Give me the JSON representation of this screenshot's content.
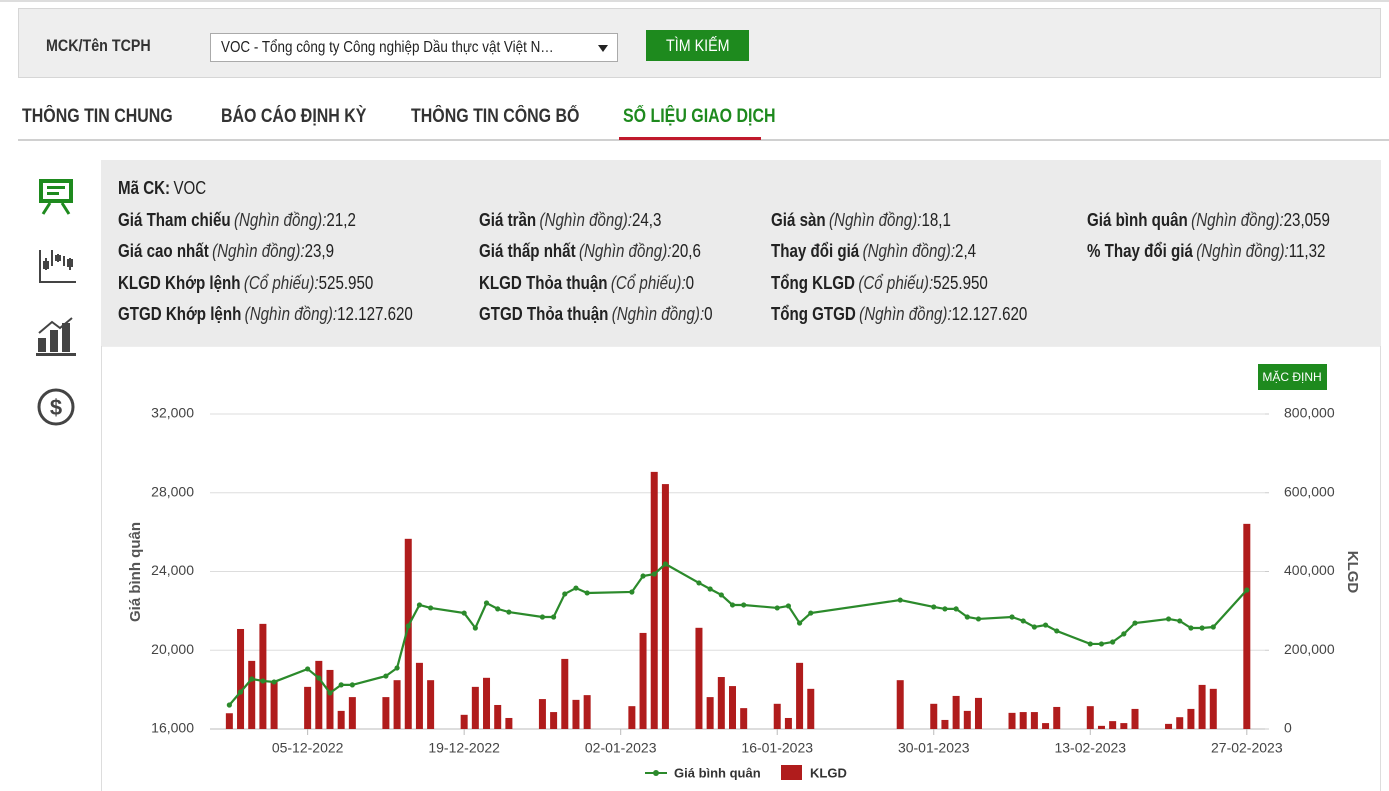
{
  "search": {
    "label": "MCK/Tên TCPH",
    "select": "VOC - Tổng công ty Công nghiệp Dầu thực vật Việt N…",
    "button": "TÌM KIẾM"
  },
  "tabs": [
    "THÔNG TIN CHUNG",
    "BÁO CÁO ĐỊNH KỲ",
    "THÔNG TIN CÔNG BỐ",
    "SỐ LIỆU GIAO DỊCH"
  ],
  "info": {
    "rows": [
      [
        {
          "label": "Mã CK:",
          "value": "VOC"
        }
      ],
      [
        {
          "label": "Giá Tham chiếu",
          "unit": "(Nghìn đồng):",
          "value": "21,2"
        },
        {
          "label": "Giá trần",
          "unit": "(Nghìn đồng):",
          "value": "24,3"
        },
        {
          "label": "Giá sàn",
          "unit": "(Nghìn đồng):",
          "value": "18,1"
        },
        {
          "label": "Giá bình quân",
          "unit": "(Nghìn đồng):",
          "value": "23,059"
        }
      ],
      [
        {
          "label": "Giá cao nhất",
          "unit": "(Nghìn đồng):",
          "value": "23,9"
        },
        {
          "label": "Giá thấp nhất",
          "unit": "(Nghìn đồng):",
          "value": "20,6"
        },
        {
          "label": "Thay đổi giá",
          "unit": "(Nghìn đồng):",
          "value": "2,4"
        },
        {
          "label": "% Thay đổi giá",
          "unit": "(Nghìn đồng):",
          "value": "11,32"
        }
      ],
      [
        {
          "label": "KLGD Khớp lệnh",
          "unit": "(Cổ phiếu):",
          "value": "525.950"
        },
        {
          "label": "KLGD Thỏa thuận",
          "unit": "(Cổ phiếu):",
          "value": "0"
        },
        {
          "label": "Tổng KLGD",
          "unit": "(Cổ phiếu):",
          "value": "525.950"
        }
      ],
      [
        {
          "label": "GTGD Khớp lệnh",
          "unit": "(Nghìn đồng):",
          "value": "12.127.620"
        },
        {
          "label": "GTGD Thỏa thuận",
          "unit": "(Nghìn đồng):",
          "value": "0"
        },
        {
          "label": "Tổng GTGD",
          "unit": "(Nghìn đồng):",
          "value": "12.127.620"
        }
      ]
    ]
  },
  "chart_button": "MẶC ĐỊNH",
  "chart_data": {
    "type": "line-bar",
    "y_label": "Giá bình quân",
    "y2_label": "KLGD",
    "x": [
      "28-11-2022",
      "29-11-2022",
      "30-11-2022",
      "01-12-2022",
      "02-12-2022",
      "05-12-2022",
      "06-12-2022",
      "07-12-2022",
      "08-12-2022",
      "09-12-2022",
      "12-12-2022",
      "13-12-2022",
      "14-12-2022",
      "15-12-2022",
      "16-12-2022",
      "19-12-2022",
      "20-12-2022",
      "21-12-2022",
      "22-12-2022",
      "23-12-2022",
      "26-12-2022",
      "27-12-2022",
      "28-12-2022",
      "29-12-2022",
      "30-12-2022",
      "03-01-2023",
      "04-01-2023",
      "05-01-2023",
      "06-01-2023",
      "09-01-2023",
      "10-01-2023",
      "11-01-2023",
      "12-01-2023",
      "13-01-2023",
      "16-01-2023",
      "17-01-2023",
      "18-01-2023",
      "19-01-2023",
      "27-01-2023",
      "30-01-2023",
      "31-01-2023",
      "01-02-2023",
      "02-02-2023",
      "03-02-2023",
      "06-02-2023",
      "07-02-2023",
      "08-02-2023",
      "09-02-2023",
      "10-02-2023",
      "13-02-2023",
      "14-02-2023",
      "15-02-2023",
      "16-02-2023",
      "17-02-2023",
      "20-02-2023",
      "21-02-2023",
      "22-02-2023",
      "23-02-2023",
      "24-02-2023",
      "27-02-2023"
    ],
    "xlim": [
      "26-11-2022",
      "28-02-2023"
    ],
    "xticks": [
      "05-12-2022",
      "19-12-2022",
      "02-01-2023",
      "16-01-2023",
      "30-01-2023",
      "13-02-2023",
      "27-02-2023"
    ],
    "series": [
      {
        "name": "Giá bình quân",
        "color": "#2b8a2b",
        "kind": "line",
        "values": [
          17220,
          17880,
          18540,
          18440,
          18390,
          19050,
          18590,
          17830,
          18240,
          18240,
          18690,
          19100,
          21230,
          22300,
          22150,
          21890,
          21130,
          22400,
          22100,
          21940,
          21690,
          21690,
          22860,
          23160,
          22910,
          22960,
          23770,
          23870,
          24380,
          23420,
          23110,
          22810,
          22300,
          22300,
          22150,
          22250,
          21380,
          21890,
          22550,
          22200,
          22100,
          22100,
          21690,
          21590,
          21690,
          21490,
          21180,
          21280,
          20980,
          20320,
          20320,
          20420,
          20830,
          21380,
          21590,
          21490,
          21130,
          21130,
          21180,
          23060
        ]
      },
      {
        "name": "KLGD",
        "color": "#b01c1c",
        "kind": "bar",
        "axis": "y2",
        "values": [
          40000,
          254000,
          173000,
          267000,
          122000,
          107000,
          173000,
          150000,
          46000,
          81000,
          81000,
          124000,
          483000,
          168000,
          124000,
          36000,
          107000,
          130000,
          61000,
          28000,
          76000,
          43000,
          178000,
          74000,
          86000,
          58000,
          244000,
          653000,
          622000,
          257000,
          81000,
          132000,
          109000,
          53000,
          64000,
          28000,
          168000,
          102000,
          124000,
          64000,
          23000,
          84000,
          46000,
          79000,
          41000,
          43000,
          43000,
          15000,
          56000,
          58000,
          8000,
          20000,
          15000,
          51000,
          13000,
          30000,
          51000,
          112000,
          102000,
          521000
        ]
      }
    ],
    "ylim": [
      16000,
      32000
    ],
    "yticks": [
      {
        "value": 16000,
        "label": "16,000"
      },
      {
        "value": 20000,
        "label": "20,000"
      },
      {
        "value": 24000,
        "label": "24,000"
      },
      {
        "value": 28000,
        "label": "28,000"
      },
      {
        "value": 32000,
        "label": "32,000"
      }
    ],
    "y2lim": [
      0,
      800000
    ],
    "y2ticks": [
      0,
      {
        "value": 200000,
        "label": "200,000"
      },
      {
        "value": 400000,
        "label": "400,000"
      },
      {
        "value": 600000,
        "label": "600,000"
      },
      {
        "value": 800000,
        "label": "800,000"
      }
    ],
    "grid": true
  }
}
